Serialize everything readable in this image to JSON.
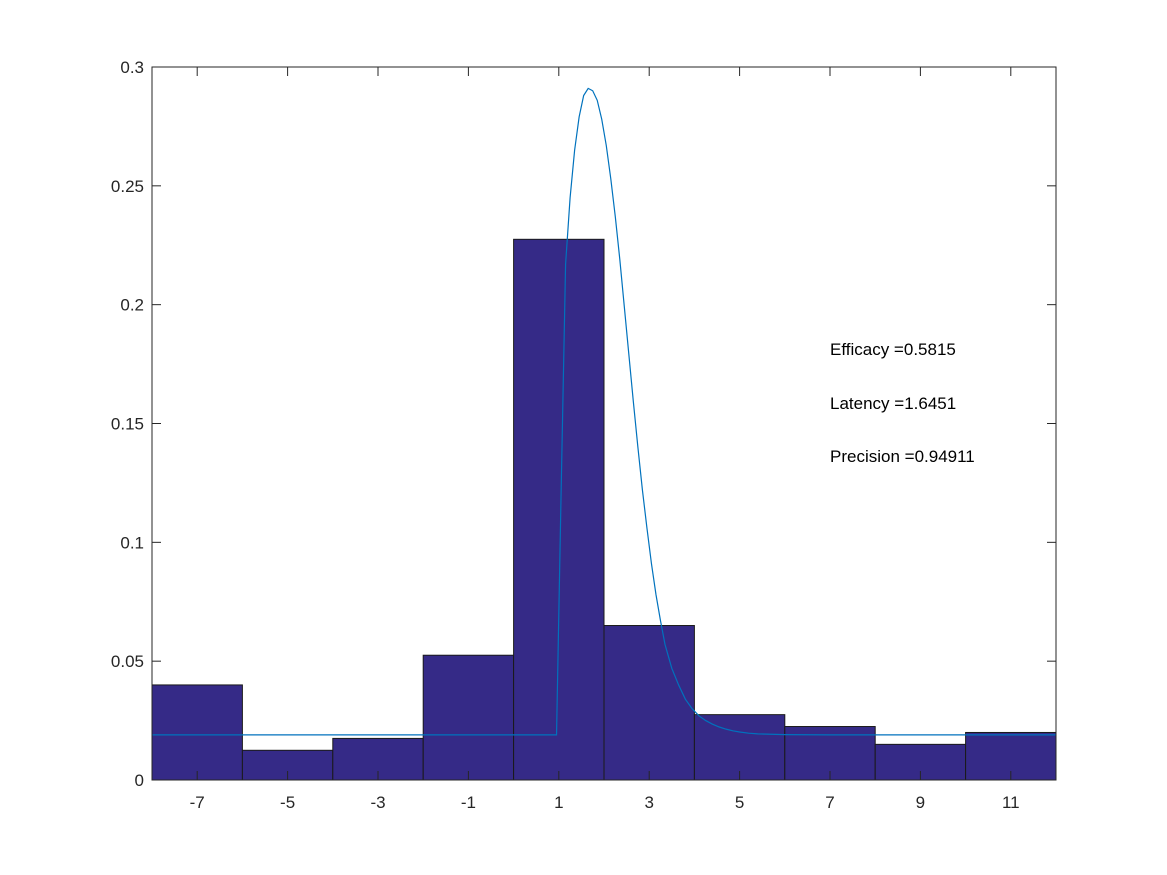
{
  "chart_data": {
    "type": "bar",
    "title": "",
    "xlabel": "",
    "ylabel": "",
    "xlim": [
      -8,
      12
    ],
    "ylim": [
      0,
      0.3
    ],
    "bin_edges": [
      -8,
      -6,
      -4,
      -2,
      0,
      2,
      4,
      6,
      8,
      10,
      12
    ],
    "values": [
      0.04,
      0.0125,
      0.0175,
      0.0525,
      0.2275,
      0.065,
      0.0275,
      0.0225,
      0.015,
      0.02
    ],
    "bar_color": "#352a87",
    "x_ticks": [
      -7,
      -5,
      -3,
      -1,
      1,
      3,
      5,
      7,
      9,
      11
    ],
    "x_tick_labels": [
      "-7",
      "-5",
      "-3",
      "-1",
      "1",
      "3",
      "5",
      "7",
      "9",
      "11"
    ],
    "y_ticks": [
      0,
      0.05,
      0.1,
      0.15,
      0.2,
      0.25,
      0.3
    ],
    "y_tick_labels": [
      "0",
      "0.05",
      "0.1",
      "0.15",
      "0.2",
      "0.25",
      "0.3"
    ],
    "grid": false,
    "fit_curve": {
      "color": "#0072bd",
      "x": [
        -8,
        0.85,
        0.95,
        1.05,
        1.15,
        1.25,
        1.35,
        1.45,
        1.55,
        1.65,
        1.75,
        1.85,
        1.95,
        2.05,
        2.15,
        2.25,
        2.35,
        2.45,
        2.55,
        2.65,
        2.75,
        2.85,
        2.95,
        3.05,
        3.15,
        3.25,
        3.35,
        3.5,
        3.65,
        3.8,
        3.95,
        4.1,
        4.25,
        4.4,
        4.55,
        4.7,
        4.85,
        5.0,
        5.2,
        5.4,
        5.6,
        5.8,
        6.0,
        7,
        8,
        10,
        12
      ],
      "y": [
        0.019,
        0.019,
        0.019,
        0.12,
        0.217,
        0.245,
        0.265,
        0.279,
        0.288,
        0.291,
        0.29,
        0.286,
        0.278,
        0.267,
        0.253,
        0.237,
        0.219,
        0.199,
        0.179,
        0.159,
        0.14,
        0.122,
        0.106,
        0.091,
        0.078,
        0.067,
        0.057,
        0.047,
        0.04,
        0.034,
        0.03,
        0.027,
        0.025,
        0.0235,
        0.0223,
        0.0214,
        0.0207,
        0.0202,
        0.0197,
        0.0194,
        0.0193,
        0.0192,
        0.0191,
        0.019,
        0.019,
        0.019,
        0.019
      ]
    },
    "annotations": [
      "Efficacy =0.5815",
      "Latency =1.6451",
      "Precision =0.94911"
    ]
  }
}
